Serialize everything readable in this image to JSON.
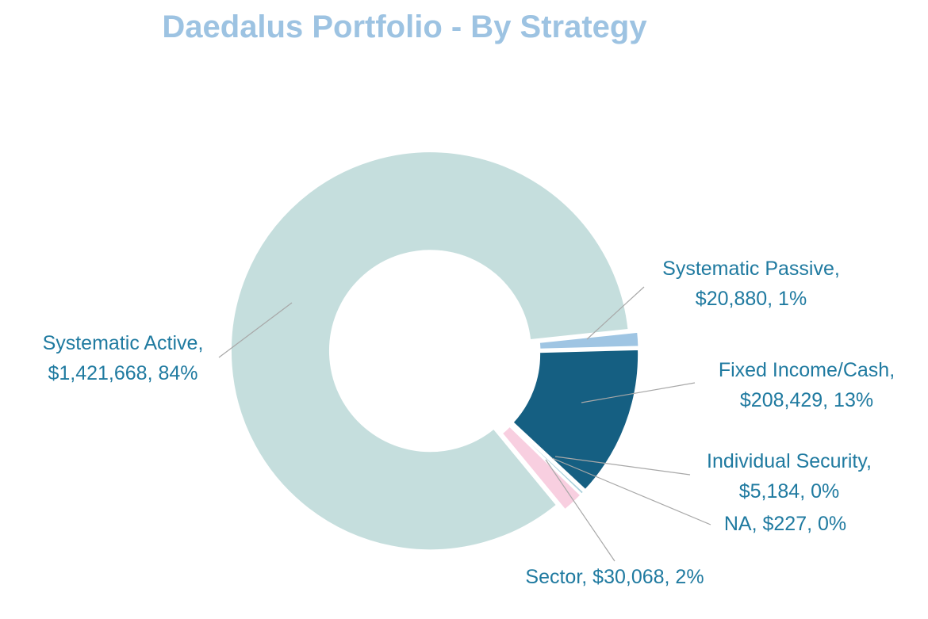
{
  "chart_data": {
    "type": "donut",
    "title": "Daedalus  Portfolio - By Strategy",
    "values": [
      20880,
      208429,
      5184,
      227,
      30068,
      1421668
    ],
    "value_labels": [
      "Systematic Passive,\n$20,880, 1%",
      "Fixed Income/Cash,\n$208,429, 13%",
      "Individual Security,\n$5,184, 0%",
      "NA, $227, 0%",
      "Sector, $30,068, 2%",
      "Systematic Active,\n$1,421,668, 84%"
    ],
    "colors": [
      "#9fc5e3",
      "#155f82",
      "#a9d0dc",
      "#d6e9ef",
      "#f8cfe0",
      "#c5dedd"
    ]
  }
}
